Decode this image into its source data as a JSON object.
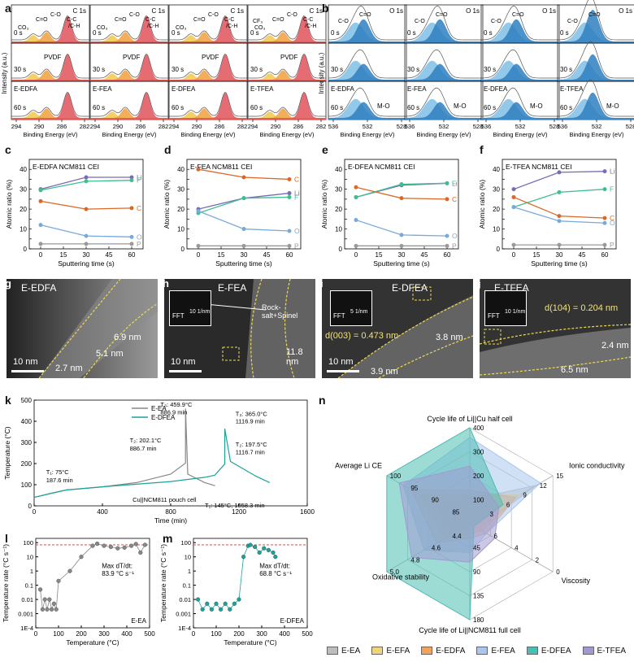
{
  "panel_letters": [
    "a",
    "b",
    "c",
    "d",
    "e",
    "f",
    "g",
    "h",
    "i",
    "j",
    "k",
    "l",
    "m",
    "n"
  ],
  "xps": {
    "c1s": {
      "title": "C 1s",
      "xlabel": "Binding Energy (eV)",
      "ylabel": "Intensity (a.u.)",
      "ticks": [
        "294",
        "290",
        "286",
        "282"
      ],
      "times": [
        "0 s",
        "30 s",
        "60 s"
      ],
      "peak_labels_0s": [
        "CO₃",
        "C=O",
        "C-O",
        "C-C",
        "/C-H"
      ],
      "cf3": "CF₃",
      "pvdf": "PVDF",
      "samples": [
        "E-EDFA",
        "E-FEA",
        "E-DFEA",
        "E-TFEA"
      ],
      "color_main": "#e0525a",
      "color_2": "#f0a03c",
      "color_3": "#f2c84b"
    },
    "o1s": {
      "title": "O 1s",
      "xlabel": "Binding Energy (eV)",
      "ticks": [
        "536",
        "532",
        "528"
      ],
      "times": [
        "0 s",
        "30 s",
        "60 s"
      ],
      "peak_labels": [
        "C-O",
        "C=O"
      ],
      "mo": "M-O",
      "samples": [
        "E-EDFA",
        "E-FEA",
        "E-DFEA",
        "E-TFEA"
      ],
      "color_main": "#2e7fbf",
      "color_2": "#7fc0e8"
    }
  },
  "atomic_charts": [
    {
      "title": "E-EDFA  NCM811  CEI",
      "order_labels": [
        "Li",
        "F",
        "C",
        "O",
        "P"
      ],
      "series": {
        "Li": [
          30,
          36,
          36
        ],
        "F": [
          29.5,
          34,
          34.5
        ],
        "C": [
          24,
          20,
          20.5
        ],
        "O": [
          12,
          6.5,
          6
        ],
        "P": [
          2.5,
          2.5,
          2.5
        ]
      }
    },
    {
      "title": "E-FEA  NCM811  CEI",
      "order_labels": [
        "C",
        "Li",
        "F",
        "O",
        "P"
      ],
      "series": {
        "C": [
          40,
          36,
          35
        ],
        "Li": [
          20,
          25.5,
          28
        ],
        "F": [
          18,
          25.5,
          26
        ],
        "O": [
          19,
          10,
          9
        ],
        "P": [
          1.5,
          1.5,
          1.5
        ]
      }
    },
    {
      "title": "E-DFEA  NCM811  CEI",
      "order_labels": [
        "Li",
        "F",
        "C",
        "O",
        "P"
      ],
      "series": {
        "Li": [
          26,
          32,
          33
        ],
        "F": [
          26,
          32.5,
          33
        ],
        "C": [
          31,
          25.5,
          25
        ],
        "O": [
          14.5,
          7,
          6.5
        ],
        "P": [
          1.5,
          1.5,
          1.5
        ]
      }
    },
    {
      "title": "E-TFEA  NCM811  CEI",
      "order_labels": [
        "Li",
        "F",
        "C",
        "O",
        "P"
      ],
      "series": {
        "Li": [
          30,
          38.5,
          39
        ],
        "F": [
          21,
          28.5,
          30
        ],
        "C": [
          26,
          16.5,
          15.5
        ],
        "O": [
          21,
          14,
          13
        ],
        "P": [
          2,
          2,
          2
        ]
      }
    }
  ],
  "atomic_axes": {
    "xlabel": "Sputtering time (s)",
    "ylabel": "Atomic ratio (%)",
    "xticks": [
      0,
      15,
      30,
      45,
      60
    ],
    "yticks": [
      0,
      5,
      10,
      15,
      20,
      25,
      30,
      35,
      40,
      45
    ],
    "x": [
      0,
      30,
      60
    ],
    "colors": {
      "Li": "#7a6bb8",
      "F": "#3fbf8f",
      "C": "#d9692b",
      "O": "#77aad9",
      "P": "#999999"
    }
  },
  "tem": [
    {
      "tag": "E-EDFA",
      "labels": [
        "6.9 nm",
        "5.1 nm",
        "2.7 nm"
      ],
      "scale": "10 nm"
    },
    {
      "tag": "E-FEA",
      "labels": [
        "Rock-salt+Spinel",
        "11.8 nm"
      ],
      "scale": "10 nm",
      "fft": "FFT",
      "fft_scale": "10 1/nm"
    },
    {
      "tag": "E-DFEA",
      "labels": [
        "d(003) = 0.473 nm",
        "3.8 nm",
        "3.9 nm"
      ],
      "scale": "10 nm",
      "fft": "FFT",
      "fft_scale": "5 1/nm"
    },
    {
      "tag": "E-TFEA",
      "labels": [
        "d(104) = 0.204 nm",
        "2.4 nm",
        "6.5 nm"
      ],
      "scale": "",
      "fft": "FFT",
      "fft_scale": "10 1/nm"
    }
  ],
  "chart_data": [
    {
      "type": "line",
      "panel": "k",
      "xlabel": "Time (min)",
      "ylabel": "Temperature (°C)",
      "xlim": [
        0,
        1600
      ],
      "ylim": [
        0,
        500
      ],
      "xticks": [
        0,
        400,
        800,
        1200,
        1600
      ],
      "yticks": [
        0,
        100,
        200,
        300,
        400,
        500
      ],
      "series": [
        {
          "name": "E-EA",
          "color": "#888888",
          "x": [
            0,
            100,
            187.6,
            400,
            600,
            800,
            886.7,
            886.9,
            900,
            1000,
            1060
          ],
          "y": [
            40,
            60,
            75,
            90,
            110,
            150,
            202.1,
            459.9,
            150,
            110,
            95
          ]
        },
        {
          "name": "E-DFEA",
          "color": "#1aa39a",
          "x": [
            0,
            187.6,
            400,
            800,
            1000,
            1058.3,
            1116.7,
            1116.9,
            1150,
            1300,
            1380
          ],
          "y": [
            40,
            75,
            90,
            115,
            135,
            145,
            197.5,
            365,
            210,
            140,
            110
          ]
        }
      ],
      "annotations": [
        "T₃: 459.9°C",
        "886.9 min",
        "T₂: 202.1°C",
        "886.7 min",
        "T₁: 75°C",
        "187.6 min",
        "T₃: 365.0°C",
        "1116.9 min",
        "T₂: 197.5°C",
        "1116.7 min",
        "T₁: 145°C, 1058.3 min"
      ],
      "caption": "Cu||NCM811 pouch cell"
    },
    {
      "type": "scatter",
      "panel": "l",
      "xlabel": "Temperature (°C)",
      "ylabel": "Temperature rate (°C s⁻¹)",
      "xlim": [
        0,
        500
      ],
      "xticks": [
        0,
        100,
        200,
        300,
        400,
        500
      ],
      "yticks": [
        "1E-4",
        "0.001",
        "0.01",
        "0.1",
        "1",
        "10",
        "100"
      ],
      "series": [
        {
          "name": "E-EA",
          "color": "#888888",
          "x": [
            20,
            30,
            40,
            50,
            60,
            70,
            80,
            90,
            100,
            150,
            200,
            250,
            270,
            300,
            330,
            360,
            390,
            420,
            440,
            460,
            480
          ],
          "y": [
            0.05,
            0.002,
            0.01,
            0.002,
            0.01,
            0.002,
            0.005,
            0.002,
            0.2,
            1,
            10,
            60,
            83.9,
            60,
            50,
            40,
            45,
            60,
            80,
            20,
            70
          ]
        }
      ],
      "annotation": "Max dT/dt:",
      "annotation2": "83.9 °C s⁻¹",
      "tag": "E-EA"
    },
    {
      "type": "scatter",
      "panel": "m",
      "xlabel": "Temperature (°C)",
      "ylabel": "Temperature rate (°C s⁻¹)",
      "xlim": [
        0,
        500
      ],
      "xticks": [
        0,
        100,
        200,
        300,
        400,
        500
      ],
      "yticks": [
        "1E-4",
        "0.001",
        "0.01",
        "0.1",
        "1",
        "10",
        "100"
      ],
      "series": [
        {
          "name": "E-DFEA",
          "color": "#1aa39a",
          "x": [
            20,
            40,
            60,
            80,
            100,
            120,
            140,
            160,
            180,
            200,
            220,
            240,
            250,
            270,
            290,
            310,
            330,
            350,
            360
          ],
          "y": [
            0.01,
            0.002,
            0.005,
            0.002,
            0.005,
            0.002,
            0.005,
            0.002,
            0.005,
            0.01,
            10,
            60,
            68.8,
            50,
            20,
            40,
            30,
            20,
            10
          ]
        }
      ],
      "annotation": "Max dT/dt:",
      "annotation2": "68.8 °C s⁻¹",
      "tag": "E-DFEA"
    }
  ],
  "radar": {
    "axes": [
      "Cycle life of Li||Cu half cell",
      "Ionic conductivity",
      "Viscosity",
      "Cycle life of Li||NCM811 full cell",
      "Oxidative stability",
      "Average Li CE"
    ],
    "tick_sets": [
      [
        "100",
        "200",
        "300",
        "400"
      ],
      [
        "3",
        "6",
        "9",
        "12",
        "15"
      ],
      [
        "6",
        "4",
        "2",
        "0"
      ],
      [
        "45",
        "90",
        "135",
        "180"
      ],
      [
        "4.4",
        "4.6",
        "4.8",
        "5.0"
      ],
      [
        "85",
        "90",
        "95",
        "100"
      ]
    ],
    "series": [
      {
        "name": "E-EA",
        "color": "#bdbdbd",
        "values": [
          0.25,
          0.8,
          0.1,
          0.05,
          0.2,
          0.4
        ]
      },
      {
        "name": "E-EFA",
        "color": "#f2d27a",
        "values": [
          0.3,
          0.6,
          0.15,
          0.1,
          0.3,
          0.6
        ]
      },
      {
        "name": "E-EDFA",
        "color": "#f0a35a",
        "values": [
          0.35,
          0.55,
          0.2,
          0.15,
          0.4,
          0.7
        ]
      },
      {
        "name": "E-FEA",
        "color": "#a9c6ec",
        "values": [
          0.9,
          0.85,
          0.2,
          0.3,
          0.55,
          0.8
        ]
      },
      {
        "name": "E-DFEA",
        "color": "#4dbdb3",
        "values": [
          1.0,
          0.4,
          0.05,
          1.0,
          1.0,
          1.0
        ]
      },
      {
        "name": "E-TFEA",
        "color": "#a09ad1",
        "values": [
          0.6,
          0.35,
          0.3,
          0.4,
          0.7,
          0.85
        ]
      }
    ]
  }
}
